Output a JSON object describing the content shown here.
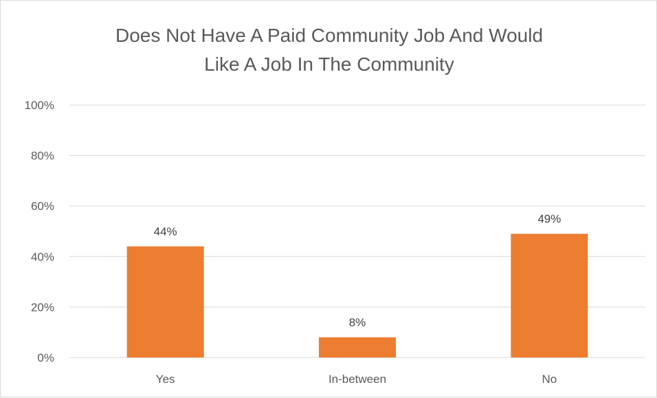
{
  "chart_data": {
    "type": "bar",
    "title_lines": [
      "Does Not Have A Paid Community Job And Would",
      "Like A Job In The Community"
    ],
    "categories": [
      "Yes",
      "In-between",
      "No"
    ],
    "values": [
      44,
      8,
      49
    ],
    "data_labels": [
      "44%",
      "8%",
      "49%"
    ],
    "ylim": [
      0,
      100
    ],
    "yticks": [
      0,
      20,
      40,
      60,
      80,
      100
    ],
    "ytick_labels": [
      "0%",
      "20%",
      "40%",
      "60%",
      "80%",
      "100%"
    ],
    "xlabel": "",
    "ylabel": "",
    "grid": true,
    "legend": "none",
    "bar_color": "#ed7d31",
    "grid_color": "#d9d9d9",
    "text_color": "#595959"
  }
}
